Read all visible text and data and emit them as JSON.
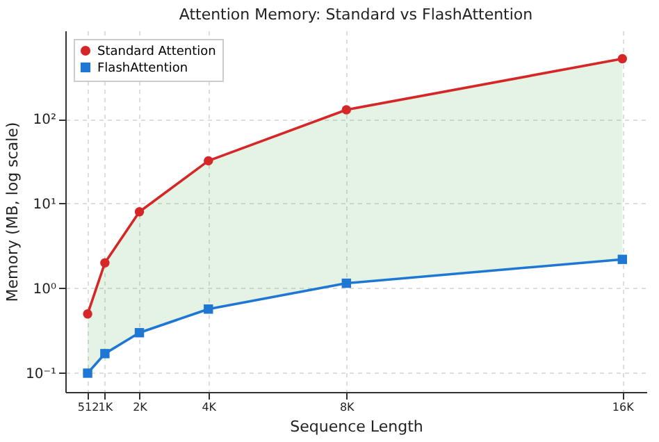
{
  "chart_data": {
    "type": "line",
    "title": "Attention Memory: Standard vs FlashAttention",
    "xlabel": "Sequence Length",
    "ylabel": "Memory (MB, log scale)",
    "x": [
      512,
      1024,
      2048,
      4096,
      8192,
      16384
    ],
    "series": [
      {
        "name": "Standard Attention",
        "color": "#d62728",
        "marker": "circle",
        "values": [
          0.5,
          2,
          8,
          32,
          128,
          512
        ],
        "lower": [
          0.1,
          0.17,
          0.3,
          0.57,
          1.15,
          2.2
        ],
        "upper": [
          0.5,
          2,
          8,
          32,
          128,
          512
        ]
      },
      {
        "name": "FlashAttention",
        "color": "#1f77d4",
        "marker": "square",
        "values": [
          0.1,
          0.17,
          0.3,
          0.57,
          1.15,
          2.2
        ]
      }
    ],
    "log": "y",
    "xlim": [
      -150,
      17100
    ],
    "ylim": [
      0.06,
      1100
    ],
    "xticks": [
      {
        "value": 512,
        "label": "512"
      },
      {
        "value": 1024,
        "label": "1K"
      },
      {
        "value": 2048,
        "label": "2K"
      },
      {
        "value": 4096,
        "label": "4K"
      },
      {
        "value": 8192,
        "label": "8K"
      },
      {
        "value": 16384,
        "label": "16K"
      }
    ],
    "yticks": [
      {
        "value": 0.1,
        "label": "10⁻¹"
      },
      {
        "value": 1,
        "label": "10⁰"
      },
      {
        "value": 10,
        "label": "10¹"
      },
      {
        "value": 100,
        "label": "10²"
      }
    ],
    "grid": true,
    "legend": "top left",
    "line_style": "solid"
  }
}
